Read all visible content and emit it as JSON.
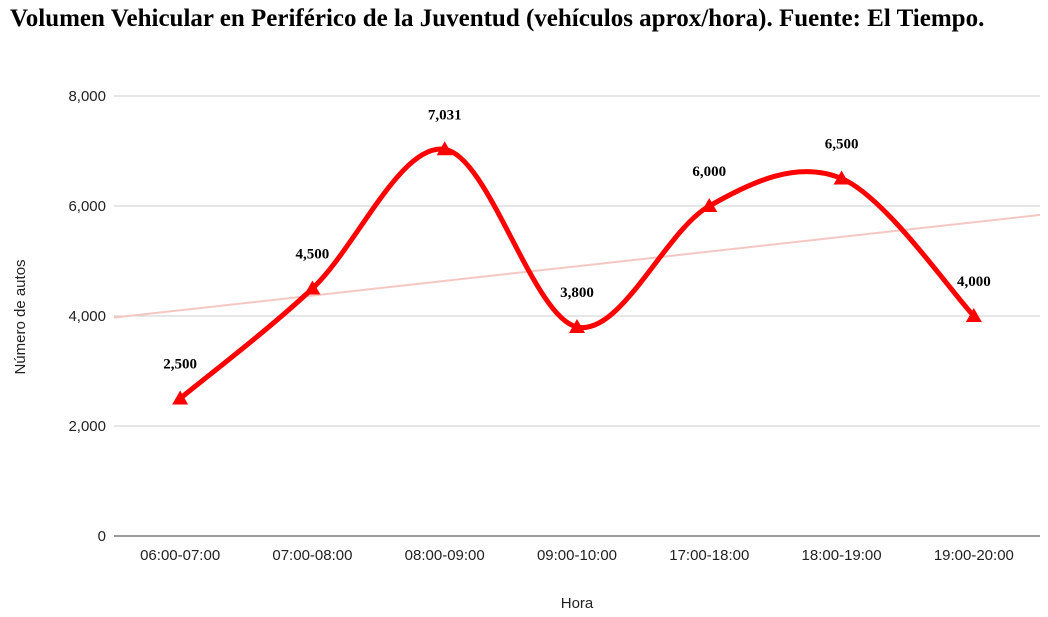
{
  "chart_data": {
    "type": "line",
    "title": "Volumen Vehicular en Periférico de la Juventud (vehículos aprox/hora). Fuente: El Tiempo.",
    "xlabel": "Hora",
    "ylabel": "Número de autos",
    "categories": [
      "06:00-07:00",
      "07:00-08:00",
      "08:00-09:00",
      "09:00-10:00",
      "17:00-18:00",
      "18:00-19:00",
      "19:00-20:00"
    ],
    "series": [
      {
        "values": [
          2500,
          4500,
          7031,
          3800,
          6000,
          6500,
          4000
        ],
        "color": "#ff0000"
      }
    ],
    "data_labels": [
      "2,500",
      "4,500",
      "7,031",
      "3,800",
      "6,000",
      "6,500",
      "4,000"
    ],
    "ylim": [
      0,
      8000
    ],
    "yticks": [
      0,
      2000,
      4000,
      6000,
      8000
    ],
    "ytick_labels": [
      "0",
      "2,000",
      "4,000",
      "6,000",
      "8,000"
    ],
    "trendline": {
      "type": "linear",
      "color": "#f4c7c3"
    },
    "marker": "triangle",
    "smooth": true,
    "grid": true,
    "legend": "none"
  }
}
